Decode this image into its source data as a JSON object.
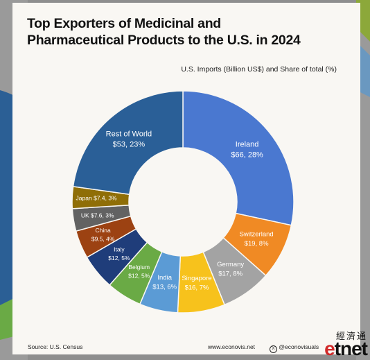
{
  "title": "Top Exporters of Medicinal and Pharmaceutical Products to the U.S. in 2024",
  "subtitle": "U.S. Imports (Billion US$) and Share of total (%)",
  "footer": {
    "source": "Source: U.S. Census",
    "website": "www.econovis.net",
    "handle": "@econovisuals"
  },
  "logo": {
    "chinese": "經濟通",
    "latin_e": "e",
    "latin_rest": "tnet"
  },
  "colors": {
    "card_bg": "#f9f7f3"
  },
  "chart_data": {
    "type": "pie",
    "variant": "donut",
    "unit": "Billion US$",
    "slices": [
      {
        "name": "Ireland",
        "value": 66,
        "share": 28,
        "color": "#4a78d0",
        "text_color": "#ffffff",
        "l1": "Ireland",
        "l2": "$66, 28%"
      },
      {
        "name": "Switzerland",
        "value": 19,
        "share": 8,
        "color": "#f08a24",
        "text_color": "#ffffff",
        "l1": "Switzerland",
        "l2": "$19, 8%"
      },
      {
        "name": "Germany",
        "value": 17,
        "share": 8,
        "color": "#a3a3a3",
        "text_color": "#ffffff",
        "l1": "Germany",
        "l2": "$17, 8%"
      },
      {
        "name": "Singapore",
        "value": 16,
        "share": 7,
        "color": "#f7c21c",
        "text_color": "#ffffff",
        "l1": "Singapore",
        "l2": "$16, 7%"
      },
      {
        "name": "India",
        "value": 13,
        "share": 6,
        "color": "#5b9bd5",
        "text_color": "#ffffff",
        "l1": "India",
        "l2": "$13, 6%"
      },
      {
        "name": "Belgium",
        "value": 12,
        "share": 5,
        "color": "#6aaa45",
        "text_color": "#ffffff",
        "l1": "Belgium",
        "l2": "$12, 5%"
      },
      {
        "name": "Italy",
        "value": 12,
        "share": 5,
        "color": "#1f3d7a",
        "text_color": "#ffffff",
        "l1": "Italy",
        "l2": "$12, 5%"
      },
      {
        "name": "China",
        "value": 9.5,
        "share": 4,
        "color": "#9c4212",
        "text_color": "#ffffff",
        "l1": "China",
        "l2": "$9.5, 4%"
      },
      {
        "name": "UK",
        "value": 7.6,
        "share": 3,
        "color": "#626262",
        "text_color": "#ffffff",
        "l1": "UK $7.6, 3%",
        "l2": ""
      },
      {
        "name": "Japan",
        "value": 7.4,
        "share": 3,
        "color": "#8f6e07",
        "text_color": "#ffffff",
        "l1": "Japan $7.4, 3%",
        "l2": ""
      },
      {
        "name": "Rest of World",
        "value": 53,
        "share": 23,
        "color": "#2a5f97",
        "text_color": "#ffffff",
        "l1": "Rest of World",
        "l2": "$53, 23%"
      }
    ]
  }
}
